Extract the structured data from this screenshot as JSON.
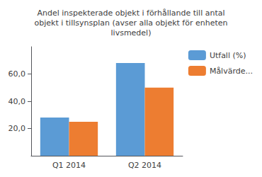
{
  "chart_data": {
    "type": "bar",
    "title": "Andel inspekterade objekt i förhållande till antal\nobjekt i tillsynsplan (avser alla objekt för enheten\nlivsmedel)",
    "categories": [
      "Q1 2014",
      "Q2 2014"
    ],
    "series": [
      {
        "name": "Utfall (%)",
        "color": "#5B9BD5",
        "values": [
          28,
          68
        ]
      },
      {
        "name": "Målvärde...",
        "color": "#ED7D31",
        "values": [
          25,
          50
        ]
      }
    ],
    "ylim": [
      0,
      80
    ],
    "yticks": [
      {
        "value": 20.0,
        "label": "20,0"
      },
      {
        "value": 40.0,
        "label": "40,0"
      },
      {
        "value": 60.0,
        "label": "60,0"
      }
    ],
    "grid": false,
    "legend": "upper right"
  }
}
